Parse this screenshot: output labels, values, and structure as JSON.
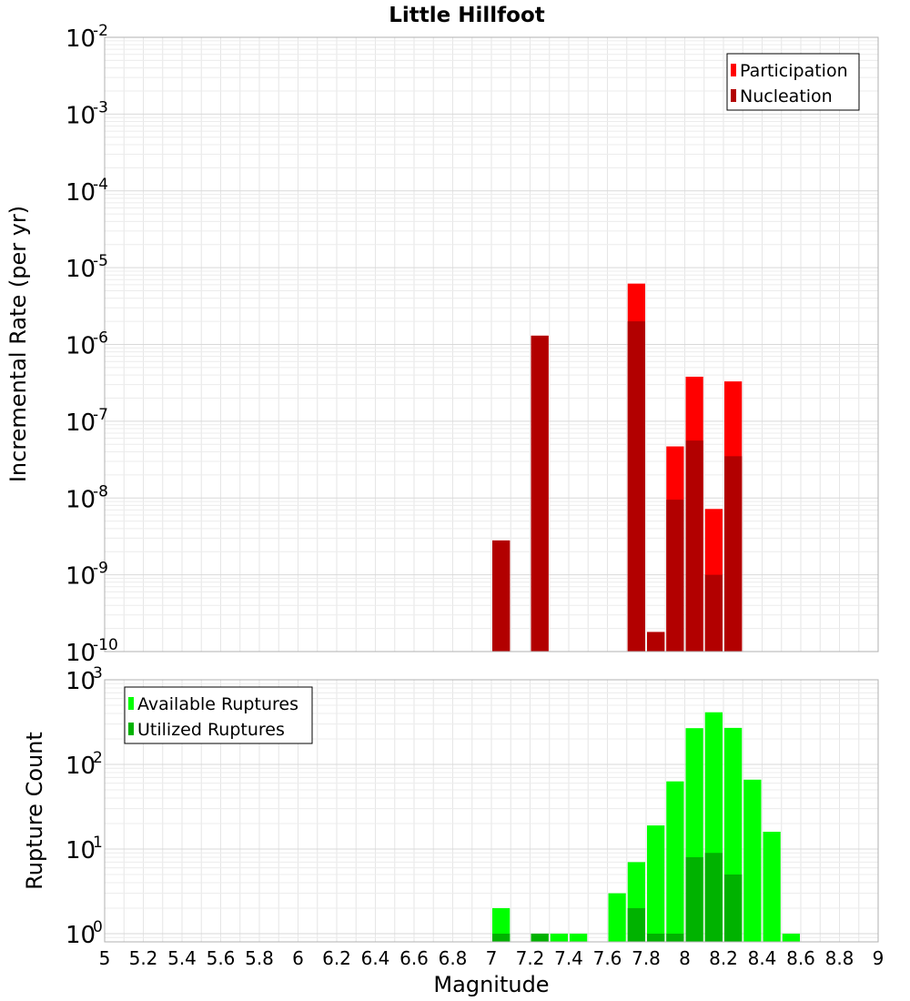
{
  "chart_data": [
    {
      "type": "bar",
      "title": "Little Hillfoot",
      "xlabel": "",
      "ylabel": "Incremental Rate (per yr)",
      "yscale": "log",
      "ylim": [
        1e-10,
        0.01
      ],
      "xlim": [
        5,
        9
      ],
      "grid": true,
      "legend_position": "top-right",
      "series": [
        {
          "name": "Participation",
          "color": "#ff0000",
          "points": [
            {
              "x": 7.05,
              "y": 2.8e-09
            },
            {
              "x": 7.25,
              "y": 1.3e-06
            },
            {
              "x": 7.75,
              "y": 6.2e-06
            },
            {
              "x": 7.85,
              "y": 1.8e-10
            },
            {
              "x": 7.95,
              "y": 4.7e-08
            },
            {
              "x": 8.05,
              "y": 3.8e-07
            },
            {
              "x": 8.15,
              "y": 7.2e-09
            },
            {
              "x": 8.25,
              "y": 3.3e-07
            }
          ]
        },
        {
          "name": "Nucleation",
          "color": "#b20000",
          "points": [
            {
              "x": 7.05,
              "y": 2.8e-09
            },
            {
              "x": 7.25,
              "y": 1.3e-06
            },
            {
              "x": 7.75,
              "y": 2e-06
            },
            {
              "x": 7.85,
              "y": 1.8e-10
            },
            {
              "x": 7.95,
              "y": 9.5e-09
            },
            {
              "x": 8.05,
              "y": 5.6e-08
            },
            {
              "x": 8.15,
              "y": 1e-09
            },
            {
              "x": 8.25,
              "y": 3.5e-08
            }
          ]
        }
      ]
    },
    {
      "type": "bar",
      "title": "",
      "xlabel": "Magnitude",
      "ylabel": "Rupture Count",
      "yscale": "log",
      "ylim": [
        0.8,
        1000
      ],
      "xlim": [
        5,
        9
      ],
      "grid": true,
      "legend_position": "top-left",
      "x_ticks": [
        "5",
        "5.2",
        "5.4",
        "5.6",
        "5.8",
        "6",
        "6.2",
        "6.4",
        "6.6",
        "6.8",
        "7",
        "7.2",
        "7.4",
        "7.6",
        "7.8",
        "8",
        "8.2",
        "8.4",
        "8.6",
        "8.8",
        "9"
      ],
      "series": [
        {
          "name": "Available Ruptures",
          "color": "#00ff00",
          "points": [
            {
              "x": 7.05,
              "y": 2
            },
            {
              "x": 7.25,
              "y": 1
            },
            {
              "x": 7.35,
              "y": 1
            },
            {
              "x": 7.45,
              "y": 1
            },
            {
              "x": 7.65,
              "y": 3
            },
            {
              "x": 7.75,
              "y": 7
            },
            {
              "x": 7.85,
              "y": 19
            },
            {
              "x": 7.95,
              "y": 63
            },
            {
              "x": 8.05,
              "y": 268
            },
            {
              "x": 8.15,
              "y": 413
            },
            {
              "x": 8.25,
              "y": 270
            },
            {
              "x": 8.35,
              "y": 66
            },
            {
              "x": 8.45,
              "y": 16
            },
            {
              "x": 8.55,
              "y": 1
            }
          ]
        },
        {
          "name": "Utilized Ruptures",
          "color": "#00b200",
          "points": [
            {
              "x": 7.05,
              "y": 1
            },
            {
              "x": 7.25,
              "y": 1
            },
            {
              "x": 7.75,
              "y": 2
            },
            {
              "x": 7.85,
              "y": 1
            },
            {
              "x": 7.95,
              "y": 1
            },
            {
              "x": 8.05,
              "y": 8
            },
            {
              "x": 8.15,
              "y": 9
            },
            {
              "x": 8.25,
              "y": 5
            }
          ]
        }
      ]
    }
  ],
  "y_exponents_top": [
    "-2",
    "-3",
    "-4",
    "-5",
    "-6",
    "-7",
    "-8",
    "-9",
    "-10"
  ],
  "y_exponents_bottom": [
    "3",
    "2",
    "1",
    "0"
  ],
  "y_base": "10"
}
